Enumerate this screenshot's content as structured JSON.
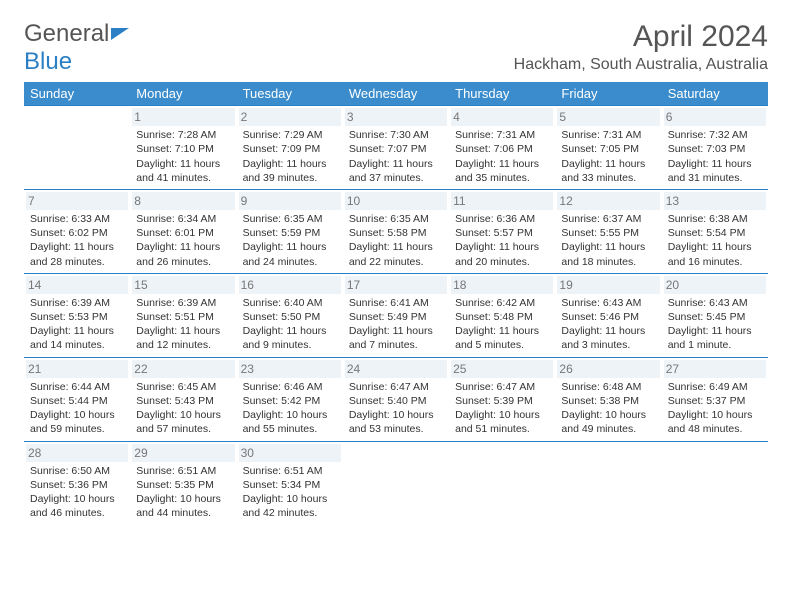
{
  "logo": {
    "text1": "General",
    "text2": "Blue"
  },
  "title": "April 2024",
  "location": "Hackham, South Australia, Australia",
  "weekdays": [
    "Sunday",
    "Monday",
    "Tuesday",
    "Wednesday",
    "Thursday",
    "Friday",
    "Saturday"
  ],
  "colors": {
    "header_bg": "#3a8ccc",
    "header_text": "#ffffff",
    "border": "#2b7fc4",
    "daynum_bg": "#eef3f8",
    "daynum_text": "#777777",
    "body_text": "#333333"
  },
  "weeks": [
    [
      {
        "num": "",
        "sunrise": "",
        "sunset": "",
        "daylight": ""
      },
      {
        "num": "1",
        "sunrise": "Sunrise: 7:28 AM",
        "sunset": "Sunset: 7:10 PM",
        "daylight": "Daylight: 11 hours and 41 minutes."
      },
      {
        "num": "2",
        "sunrise": "Sunrise: 7:29 AM",
        "sunset": "Sunset: 7:09 PM",
        "daylight": "Daylight: 11 hours and 39 minutes."
      },
      {
        "num": "3",
        "sunrise": "Sunrise: 7:30 AM",
        "sunset": "Sunset: 7:07 PM",
        "daylight": "Daylight: 11 hours and 37 minutes."
      },
      {
        "num": "4",
        "sunrise": "Sunrise: 7:31 AM",
        "sunset": "Sunset: 7:06 PM",
        "daylight": "Daylight: 11 hours and 35 minutes."
      },
      {
        "num": "5",
        "sunrise": "Sunrise: 7:31 AM",
        "sunset": "Sunset: 7:05 PM",
        "daylight": "Daylight: 11 hours and 33 minutes."
      },
      {
        "num": "6",
        "sunrise": "Sunrise: 7:32 AM",
        "sunset": "Sunset: 7:03 PM",
        "daylight": "Daylight: 11 hours and 31 minutes."
      }
    ],
    [
      {
        "num": "7",
        "sunrise": "Sunrise: 6:33 AM",
        "sunset": "Sunset: 6:02 PM",
        "daylight": "Daylight: 11 hours and 28 minutes."
      },
      {
        "num": "8",
        "sunrise": "Sunrise: 6:34 AM",
        "sunset": "Sunset: 6:01 PM",
        "daylight": "Daylight: 11 hours and 26 minutes."
      },
      {
        "num": "9",
        "sunrise": "Sunrise: 6:35 AM",
        "sunset": "Sunset: 5:59 PM",
        "daylight": "Daylight: 11 hours and 24 minutes."
      },
      {
        "num": "10",
        "sunrise": "Sunrise: 6:35 AM",
        "sunset": "Sunset: 5:58 PM",
        "daylight": "Daylight: 11 hours and 22 minutes."
      },
      {
        "num": "11",
        "sunrise": "Sunrise: 6:36 AM",
        "sunset": "Sunset: 5:57 PM",
        "daylight": "Daylight: 11 hours and 20 minutes."
      },
      {
        "num": "12",
        "sunrise": "Sunrise: 6:37 AM",
        "sunset": "Sunset: 5:55 PM",
        "daylight": "Daylight: 11 hours and 18 minutes."
      },
      {
        "num": "13",
        "sunrise": "Sunrise: 6:38 AM",
        "sunset": "Sunset: 5:54 PM",
        "daylight": "Daylight: 11 hours and 16 minutes."
      }
    ],
    [
      {
        "num": "14",
        "sunrise": "Sunrise: 6:39 AM",
        "sunset": "Sunset: 5:53 PM",
        "daylight": "Daylight: 11 hours and 14 minutes."
      },
      {
        "num": "15",
        "sunrise": "Sunrise: 6:39 AM",
        "sunset": "Sunset: 5:51 PM",
        "daylight": "Daylight: 11 hours and 12 minutes."
      },
      {
        "num": "16",
        "sunrise": "Sunrise: 6:40 AM",
        "sunset": "Sunset: 5:50 PM",
        "daylight": "Daylight: 11 hours and 9 minutes."
      },
      {
        "num": "17",
        "sunrise": "Sunrise: 6:41 AM",
        "sunset": "Sunset: 5:49 PM",
        "daylight": "Daylight: 11 hours and 7 minutes."
      },
      {
        "num": "18",
        "sunrise": "Sunrise: 6:42 AM",
        "sunset": "Sunset: 5:48 PM",
        "daylight": "Daylight: 11 hours and 5 minutes."
      },
      {
        "num": "19",
        "sunrise": "Sunrise: 6:43 AM",
        "sunset": "Sunset: 5:46 PM",
        "daylight": "Daylight: 11 hours and 3 minutes."
      },
      {
        "num": "20",
        "sunrise": "Sunrise: 6:43 AM",
        "sunset": "Sunset: 5:45 PM",
        "daylight": "Daylight: 11 hours and 1 minute."
      }
    ],
    [
      {
        "num": "21",
        "sunrise": "Sunrise: 6:44 AM",
        "sunset": "Sunset: 5:44 PM",
        "daylight": "Daylight: 10 hours and 59 minutes."
      },
      {
        "num": "22",
        "sunrise": "Sunrise: 6:45 AM",
        "sunset": "Sunset: 5:43 PM",
        "daylight": "Daylight: 10 hours and 57 minutes."
      },
      {
        "num": "23",
        "sunrise": "Sunrise: 6:46 AM",
        "sunset": "Sunset: 5:42 PM",
        "daylight": "Daylight: 10 hours and 55 minutes."
      },
      {
        "num": "24",
        "sunrise": "Sunrise: 6:47 AM",
        "sunset": "Sunset: 5:40 PM",
        "daylight": "Daylight: 10 hours and 53 minutes."
      },
      {
        "num": "25",
        "sunrise": "Sunrise: 6:47 AM",
        "sunset": "Sunset: 5:39 PM",
        "daylight": "Daylight: 10 hours and 51 minutes."
      },
      {
        "num": "26",
        "sunrise": "Sunrise: 6:48 AM",
        "sunset": "Sunset: 5:38 PM",
        "daylight": "Daylight: 10 hours and 49 minutes."
      },
      {
        "num": "27",
        "sunrise": "Sunrise: 6:49 AM",
        "sunset": "Sunset: 5:37 PM",
        "daylight": "Daylight: 10 hours and 48 minutes."
      }
    ],
    [
      {
        "num": "28",
        "sunrise": "Sunrise: 6:50 AM",
        "sunset": "Sunset: 5:36 PM",
        "daylight": "Daylight: 10 hours and 46 minutes."
      },
      {
        "num": "29",
        "sunrise": "Sunrise: 6:51 AM",
        "sunset": "Sunset: 5:35 PM",
        "daylight": "Daylight: 10 hours and 44 minutes."
      },
      {
        "num": "30",
        "sunrise": "Sunrise: 6:51 AM",
        "sunset": "Sunset: 5:34 PM",
        "daylight": "Daylight: 10 hours and 42 minutes."
      },
      {
        "num": "",
        "sunrise": "",
        "sunset": "",
        "daylight": ""
      },
      {
        "num": "",
        "sunrise": "",
        "sunset": "",
        "daylight": ""
      },
      {
        "num": "",
        "sunrise": "",
        "sunset": "",
        "daylight": ""
      },
      {
        "num": "",
        "sunrise": "",
        "sunset": "",
        "daylight": ""
      }
    ]
  ]
}
